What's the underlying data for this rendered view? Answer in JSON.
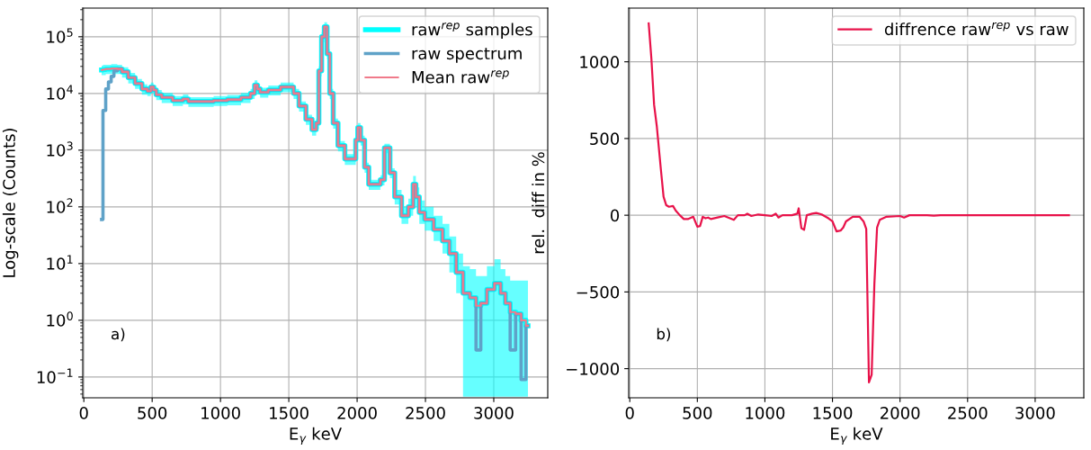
{
  "chart_data": [
    {
      "type": "step",
      "xlabel": "E$_{γ}$ keV",
      "ylabel": "Log-scale (Counts)",
      "annotations": [
        "a)"
      ],
      "log": "y",
      "grid": true,
      "legend": "top right",
      "x": [
        130,
        150,
        170,
        190,
        210,
        230,
        260,
        300,
        350,
        400,
        450,
        480,
        500,
        520,
        540,
        600,
        700,
        750,
        780,
        900,
        1000,
        1100,
        1200,
        1240,
        1260,
        1280,
        1300,
        1400,
        1480,
        1520,
        1550,
        1600,
        1650,
        1690,
        1710,
        1730,
        1750,
        1770,
        1790,
        1810,
        1840,
        1880,
        1940,
        1980,
        2000,
        2010,
        2040,
        2070,
        2100,
        2150,
        2190,
        2210,
        2230,
        2250,
        2300,
        2350,
        2400,
        2420,
        2440,
        2470,
        2520,
        2600,
        2650,
        2700,
        2750,
        2800,
        2850,
        2890,
        2920,
        2980,
        3030,
        3070,
        3100,
        3140,
        3180,
        3220,
        3250
      ],
      "xlim": [
        -8,
        3395
      ],
      "ylim": [
        0.043,
        320000
      ],
      "xticks": [
        0,
        500,
        1000,
        1500,
        2000,
        2500,
        3000
      ],
      "yticks": [
        {
          "value": 0.1,
          "label": "10$^{−1}$"
        },
        {
          "value": 1,
          "label": "10$^{0}$"
        },
        {
          "value": 10,
          "label": "10$^{1}$"
        },
        {
          "value": 100,
          "label": "10$^{2}$"
        },
        {
          "value": 1000,
          "label": "10$^{3}$"
        },
        {
          "value": 10000,
          "label": "10$^{4}$"
        },
        {
          "value": 100000,
          "label": "10$^{5}$"
        }
      ],
      "series": [
        {
          "name": "raw$^{rep}$ samples",
          "color": "#00ffff",
          "values": [
            26000,
            26500,
            27000,
            27000,
            27500,
            27500,
            27000,
            24000,
            19000,
            15000,
            12000,
            11000,
            13000,
            11500,
            9500,
            8500,
            7500,
            8000,
            7200,
            7200,
            7500,
            7800,
            8500,
            10000,
            14000,
            12000,
            10500,
            11500,
            13000,
            13000,
            10000,
            6000,
            3500,
            2300,
            3000,
            25000,
            100000,
            150000,
            50000,
            10000,
            3000,
            1200,
            700,
            700,
            1500,
            2500,
            1500,
            500,
            250,
            250,
            300,
            1100,
            1100,
            400,
            150,
            70,
            100,
            250,
            150,
            80,
            60,
            40,
            25,
            15,
            7,
            3,
            2.5,
            1.8,
            2,
            3.5,
            4.5,
            3,
            2,
            1.4,
            1.3,
            1,
            0.8
          ],
          "lower": [
            21000,
            21000,
            22000,
            22000,
            22000,
            22000,
            22000,
            19000,
            15000,
            12000,
            9500,
            9000,
            10500,
            9000,
            7600,
            6800,
            6000,
            6400,
            5800,
            5800,
            6000,
            6200,
            6800,
            8000,
            11000,
            9600,
            8400,
            9200,
            10500,
            10500,
            8000,
            4800,
            2800,
            1800,
            2400,
            20000,
            80000,
            120000,
            40000,
            8000,
            2400,
            950,
            550,
            550,
            1200,
            2000,
            1200,
            400,
            200,
            200,
            240,
            880,
            880,
            320,
            110,
            50,
            70,
            170,
            100,
            50,
            38,
            25,
            15,
            7,
            3,
            0.045,
            0.045,
            0.045,
            0.045,
            0.045,
            0.045,
            0.045,
            0.045,
            0.045,
            0.045,
            0.045,
            0.045
          ],
          "upper": [
            31000,
            32000,
            32000,
            32000,
            33000,
            33000,
            32000,
            29000,
            23000,
            18000,
            14500,
            13000,
            15500,
            14000,
            11500,
            10200,
            9000,
            9600,
            8600,
            8600,
            9000,
            9400,
            10200,
            12000,
            17000,
            14400,
            12600,
            13800,
            15500,
            15500,
            12000,
            7200,
            4200,
            2800,
            3600,
            30000,
            120000,
            180000,
            60000,
            12000,
            3600,
            1450,
            850,
            850,
            1800,
            3000,
            1800,
            600,
            300,
            300,
            360,
            1300,
            1300,
            480,
            200,
            100,
            140,
            350,
            220,
            130,
            100,
            70,
            50,
            30,
            15,
            9,
            8,
            6,
            6,
            9,
            12,
            8,
            6,
            5,
            5,
            5,
            5
          ]
        },
        {
          "name": "raw spectrum",
          "color": "#5fa2c8",
          "values": [
            60,
            5000,
            12000,
            16000,
            20000,
            25000,
            27000,
            24000,
            19000,
            15000,
            12000,
            11000,
            13000,
            11500,
            9500,
            8500,
            7500,
            8000,
            7200,
            7200,
            7500,
            7800,
            8500,
            10000,
            14000,
            12000,
            10500,
            11500,
            13000,
            13000,
            10000,
            6000,
            3500,
            2300,
            3000,
            25000,
            100000,
            150000,
            50000,
            10000,
            3000,
            1200,
            700,
            700,
            1500,
            2500,
            1500,
            500,
            250,
            250,
            300,
            1100,
            1100,
            400,
            150,
            70,
            100,
            250,
            150,
            80,
            60,
            40,
            25,
            15,
            7,
            3,
            2.5,
            0.3,
            2,
            3.5,
            4.5,
            3,
            2,
            0.3,
            1.3,
            0.09,
            0.8
          ]
        },
        {
          "name": "Mean raw$^{rep}$",
          "color": "#f07a8a",
          "values": [
            26000,
            26500,
            27000,
            27000,
            27500,
            27500,
            27000,
            24000,
            19000,
            15000,
            12000,
            11000,
            13000,
            11500,
            9500,
            8500,
            7500,
            8000,
            7200,
            7200,
            7500,
            7800,
            8500,
            10000,
            14000,
            12000,
            10500,
            11500,
            13000,
            13000,
            10000,
            6000,
            3500,
            2300,
            3000,
            25000,
            100000,
            150000,
            50000,
            10000,
            3000,
            1200,
            700,
            700,
            1500,
            2500,
            1500,
            500,
            250,
            250,
            300,
            1100,
            1100,
            400,
            150,
            70,
            100,
            250,
            150,
            80,
            60,
            40,
            25,
            15,
            7,
            3,
            2.5,
            1.8,
            2,
            3.5,
            4.5,
            3,
            2,
            1.4,
            1.3,
            1,
            0.8
          ]
        }
      ]
    },
    {
      "type": "line",
      "xlabel": "E$_{γ}$ keV",
      "ylabel": "rel.  diff in %",
      "annotations": [
        "b)"
      ],
      "grid": true,
      "legend": "top right",
      "x": [
        140,
        160,
        180,
        200,
        230,
        250,
        270,
        290,
        320,
        340,
        370,
        400,
        430,
        470,
        500,
        520,
        540,
        560,
        580,
        600,
        650,
        700,
        770,
        800,
        850,
        870,
        900,
        950,
        1000,
        1050,
        1080,
        1100,
        1130,
        1200,
        1240,
        1250,
        1270,
        1290,
        1310,
        1350,
        1380,
        1420,
        1470,
        1500,
        1530,
        1560,
        1580,
        1600,
        1650,
        1700,
        1730,
        1750,
        1770,
        1790,
        1810,
        1830,
        1850,
        1900,
        2000,
        2030,
        2070,
        2200,
        2250,
        2300,
        3250
      ],
      "xlim": [
        -8,
        3360
      ],
      "ylim": [
        -1190,
        1350
      ],
      "xticks": [
        0,
        500,
        1000,
        1500,
        2000,
        2500,
        3000
      ],
      "yticks": [
        {
          "value": -1000,
          "label": "−1000"
        },
        {
          "value": -500,
          "label": "−500"
        },
        0,
        500,
        1000
      ],
      "series": [
        {
          "name": "diffrence raw$^{rep}$ vs raw",
          "color": "#e8124a",
          "values": [
            1250,
            1020,
            720,
            580,
            300,
            120,
            65,
            55,
            60,
            30,
            0,
            -25,
            -25,
            -10,
            -75,
            -70,
            -10,
            -20,
            -15,
            -25,
            -15,
            -5,
            -30,
            0,
            0,
            10,
            -5,
            5,
            0,
            -5,
            10,
            -15,
            0,
            0,
            10,
            45,
            -85,
            -95,
            0,
            10,
            15,
            5,
            -20,
            -40,
            -105,
            -100,
            -80,
            -40,
            -10,
            -10,
            -40,
            -90,
            -1090,
            -1040,
            -450,
            -80,
            -30,
            -10,
            -5,
            -15,
            0,
            0,
            -3,
            0,
            0
          ]
        }
      ]
    }
  ]
}
